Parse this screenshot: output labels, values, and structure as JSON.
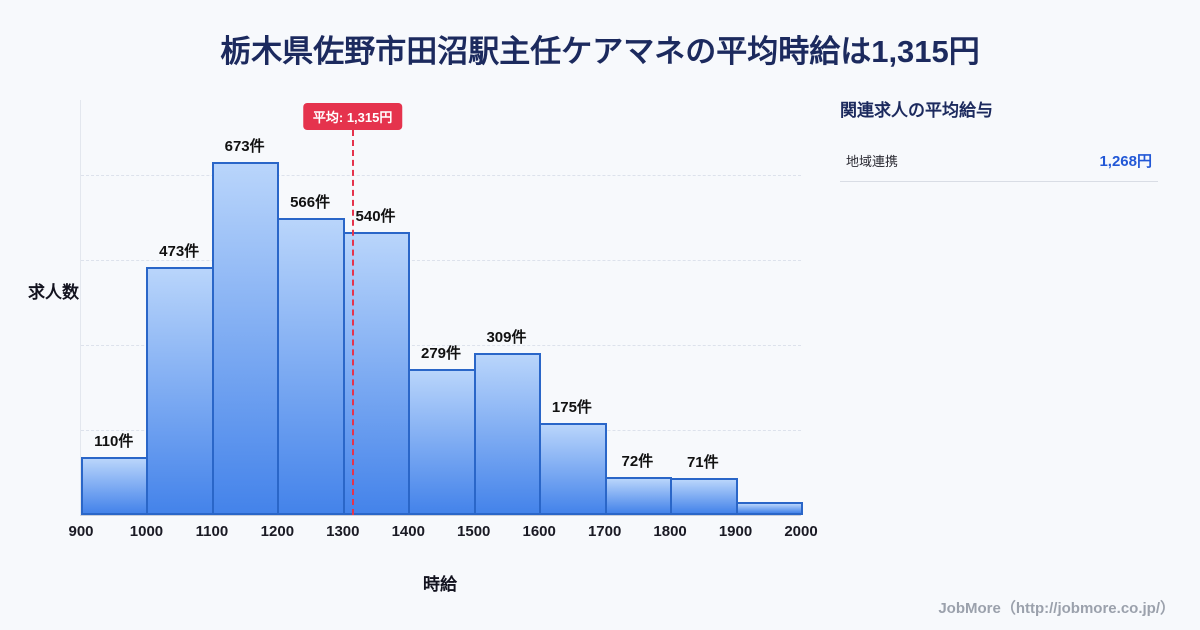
{
  "page": {
    "title": "栃木県佐野市田沼駅主任ケアマネの平均時給は1,315円",
    "footer": "JobMore（http://jobmore.co.jp/）"
  },
  "colors": {
    "background": "#f7f9fc",
    "title_navy": "#1c2a5e",
    "accent_blue": "#2258d6",
    "average_red": "#e5334d",
    "bar_top": "#b9d5fb",
    "bar_bottom": "#4483ea",
    "bar_border": "#2a66c8",
    "grid_line": "#dde2ec"
  },
  "chart_data": {
    "type": "bar",
    "title": "栃木県佐野市田沼駅主任ケアマネの平均時給は1,315円",
    "xlabel": "時給",
    "ylabel": "求人数",
    "ylim": [
      0,
      700
    ],
    "grid": true,
    "x_ticks": [
      900,
      1000,
      1100,
      1200,
      1300,
      1400,
      1500,
      1600,
      1700,
      1800,
      1900,
      2000
    ],
    "bins": [
      {
        "range": "900-1000",
        "value": 110,
        "label": "110件"
      },
      {
        "range": "1000-1100",
        "value": 473,
        "label": "473件"
      },
      {
        "range": "1100-1200",
        "value": 673,
        "label": "673件"
      },
      {
        "range": "1200-1300",
        "value": 566,
        "label": "566件"
      },
      {
        "range": "1300-1400",
        "value": 540,
        "label": "540件"
      },
      {
        "range": "1400-1500",
        "value": 279,
        "label": "279件"
      },
      {
        "range": "1500-1600",
        "value": 309,
        "label": "309件"
      },
      {
        "range": "1600-1700",
        "value": 175,
        "label": "175件"
      },
      {
        "range": "1700-1800",
        "value": 72,
        "label": "72件"
      },
      {
        "range": "1800-1900",
        "value": 71,
        "label": "71件"
      },
      {
        "range": "1900-2000",
        "value": 25,
        "label": ""
      }
    ],
    "average": {
      "value": 1315,
      "label": "平均: 1,315円"
    }
  },
  "side_panel": {
    "title": "関連求人の平均給与",
    "rows": [
      {
        "label": "地域連携",
        "value": "1,268円"
      }
    ]
  }
}
